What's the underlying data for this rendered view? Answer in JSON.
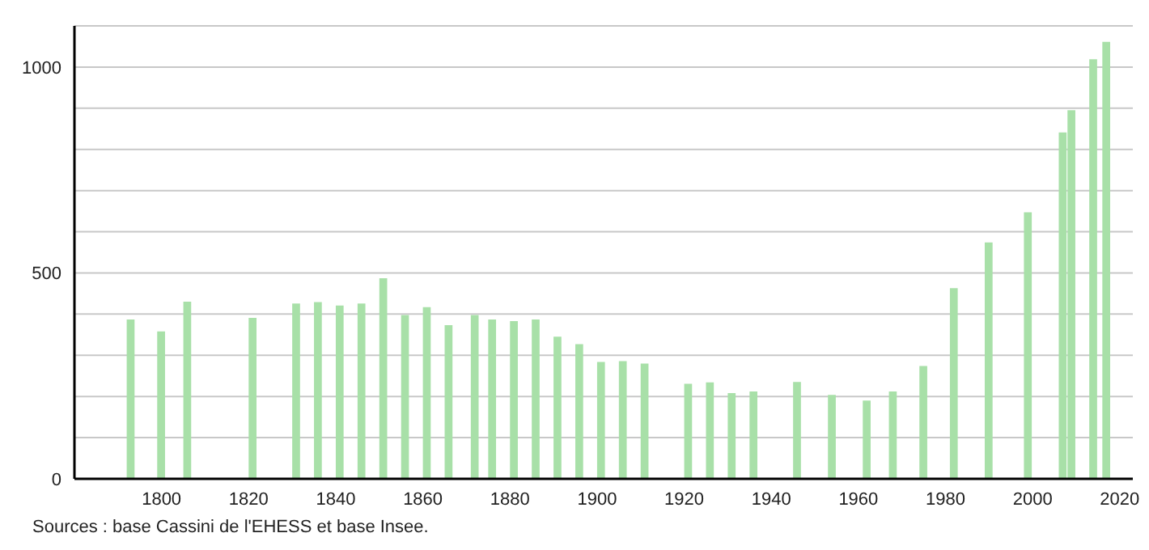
{
  "chart_data": {
    "type": "bar",
    "x": [
      1793,
      1800,
      1806,
      1821,
      1831,
      1836,
      1841,
      1846,
      1851,
      1856,
      1861,
      1866,
      1872,
      1876,
      1881,
      1886,
      1891,
      1896,
      1901,
      1906,
      1911,
      1921,
      1926,
      1931,
      1936,
      1946,
      1954,
      1962,
      1968,
      1975,
      1982,
      1990,
      1999,
      2007,
      2009,
      2014,
      2017
    ],
    "values": [
      387,
      358,
      430,
      391,
      426,
      429,
      421,
      426,
      487,
      398,
      417,
      373,
      398,
      387,
      383,
      387,
      345,
      327,
      284,
      286,
      280,
      231,
      234,
      208,
      212,
      235,
      204,
      190,
      212,
      274,
      463,
      574,
      647,
      841,
      895,
      1019,
      1061
    ],
    "color": "#a8e0a8",
    "xlim": [
      1780,
      2023
    ],
    "xticks": [
      1800,
      1820,
      1840,
      1860,
      1880,
      1900,
      1920,
      1940,
      1960,
      1980,
      2000,
      2020
    ],
    "ylim": [
      0,
      1100
    ],
    "yticks": [
      0,
      {
        "value": 100,
        "label": null
      },
      {
        "value": 200,
        "label": null
      },
      {
        "value": 300,
        "label": null
      },
      {
        "value": 400,
        "label": null
      },
      500,
      {
        "value": 600,
        "label": null
      },
      {
        "value": 700,
        "label": null
      },
      {
        "value": 800,
        "label": null
      },
      {
        "value": 900,
        "label": null
      },
      1000,
      {
        "value": 1100,
        "label": null
      }
    ],
    "grid": "y",
    "annotations": [
      "Sources : base Cassini de l'EHESS et base Insee."
    ]
  }
}
